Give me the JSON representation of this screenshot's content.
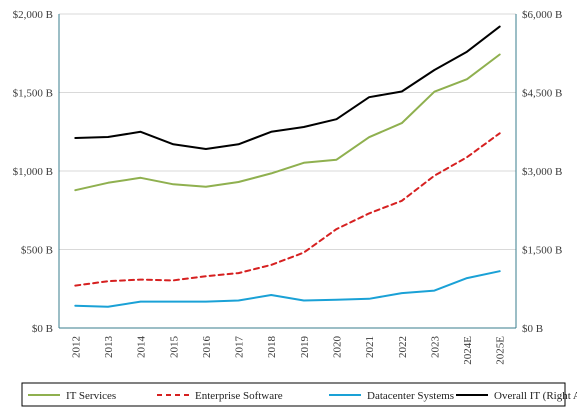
{
  "chart_data": {
    "type": "line",
    "title": "",
    "xlabel": "",
    "ylabel": "",
    "y2label": "",
    "categories": [
      "2012",
      "2013",
      "2014",
      "2015",
      "2016",
      "2017",
      "2018",
      "2019",
      "2020",
      "2021",
      "2022",
      "2023",
      "2024E",
      "2025E"
    ],
    "ylim": [
      0,
      2000
    ],
    "y2lim": [
      0,
      6000
    ],
    "y_ticks": [
      {
        "value": 0,
        "label": "$0 B"
      },
      {
        "value": 500,
        "label": "$500 B"
      },
      {
        "value": 1000,
        "label": "$1,000 B"
      },
      {
        "value": 1500,
        "label": "$1,500 B"
      },
      {
        "value": 2000,
        "label": "$2,000 B"
      }
    ],
    "y2_ticks": [
      {
        "value": 0,
        "label": "$0 B"
      },
      {
        "value": 1500,
        "label": "$1,500 B"
      },
      {
        "value": 3000,
        "label": "$3,000 B"
      },
      {
        "value": 4500,
        "label": "$4,500 B"
      },
      {
        "value": 6000,
        "label": "$6,000 B"
      }
    ],
    "grid": {
      "horizontal": true,
      "vertical": false
    },
    "legend_position": "bottom",
    "series": [
      {
        "name": "IT Services",
        "axis": "left",
        "color": "#8fb04f",
        "dash": "solid",
        "values": [
          878,
          925,
          957,
          915,
          900,
          930,
          985,
          1052,
          1072,
          1215,
          1305,
          1505,
          1585,
          1742
        ]
      },
      {
        "name": "Enterprise Software",
        "axis": "left",
        "color": "#d62020",
        "dash": "dashed",
        "values": [
          270,
          298,
          308,
          303,
          330,
          350,
          402,
          480,
          630,
          730,
          810,
          970,
          1088,
          1240
        ]
      },
      {
        "name": "Datacenter Systems",
        "axis": "left",
        "color": "#1aa1d6",
        "dash": "solid",
        "values": [
          142,
          135,
          168,
          168,
          168,
          175,
          210,
          175,
          180,
          186,
          222,
          238,
          318,
          362
        ]
      },
      {
        "name": "Overall IT (Right Axis)",
        "axis": "right",
        "color": "#000000",
        "dash": "solid",
        "values": [
          3630,
          3650,
          3750,
          3510,
          3420,
          3510,
          3750,
          3840,
          3990,
          4410,
          4520,
          4930,
          5280,
          5760
        ]
      }
    ]
  }
}
